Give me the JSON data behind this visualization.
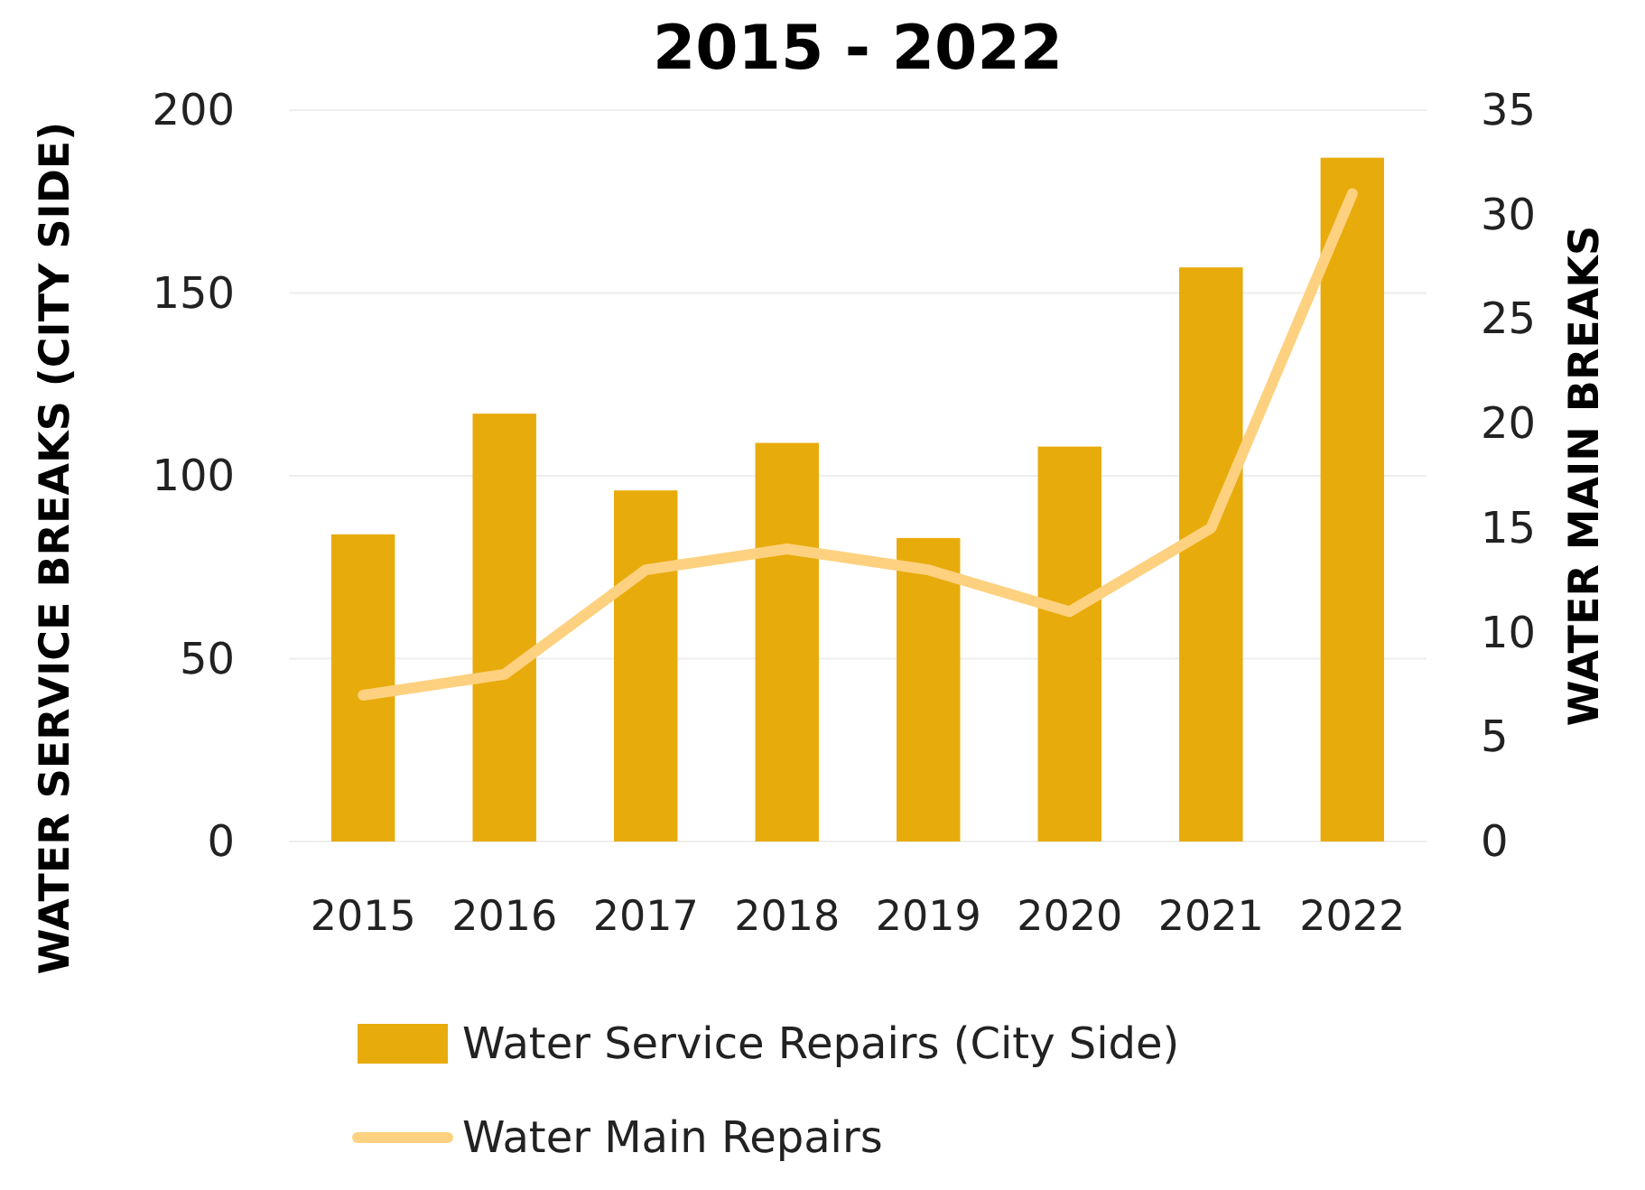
{
  "chart_data": {
    "type": "bar",
    "title": "2015 - 2022",
    "ylabel": "WATER SERVICE BREAKS (CITY SIDE)",
    "y2label": "WATER MAIN BREAKS",
    "categories": [
      "2015",
      "2016",
      "2017",
      "2018",
      "2019",
      "2020",
      "2021",
      "2022"
    ],
    "series": [
      {
        "name": "Water Service Repairs (City Side)",
        "color": "#e8ab0c",
        "values": [
          84,
          117,
          96,
          109,
          83,
          108,
          157,
          187
        ]
      },
      {
        "name": "Water Main Repairs",
        "type": "line",
        "axis": "y2",
        "color": "#fdd17f",
        "values": [
          7,
          8,
          13,
          14,
          13,
          11,
          15,
          31
        ]
      }
    ],
    "ylim": [
      0,
      200
    ],
    "yticks": [
      0,
      50,
      100,
      150,
      200
    ],
    "y2lim": [
      0,
      35
    ],
    "y2ticks": [
      0,
      5,
      10,
      15,
      20,
      25,
      30,
      35
    ],
    "grid": "y",
    "legend": "bottom"
  }
}
